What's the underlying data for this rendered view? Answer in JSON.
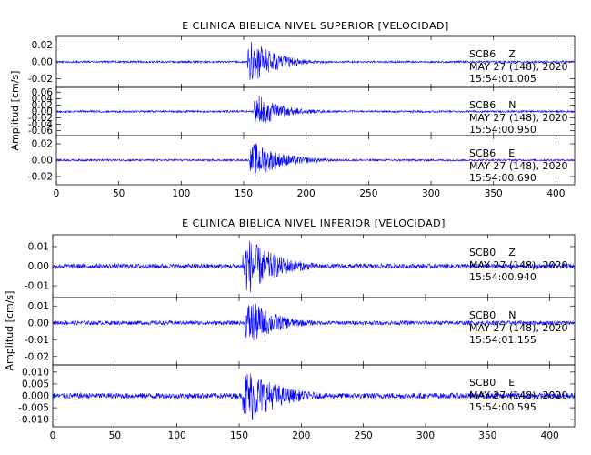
{
  "colors": {
    "trace": "#0000ff",
    "axis": "#000000",
    "background": "#ffffff"
  },
  "chart_data": [
    {
      "type": "line",
      "title": "E CLINICA BIBLICA NIVEL SUPERIOR [VELOCIDAD]",
      "ylabel": "Amplitud [cm/s]",
      "xlabel": "",
      "xlim": [
        0,
        415
      ],
      "xticks": [
        0,
        50,
        100,
        150,
        200,
        250,
        300,
        350,
        400
      ],
      "xtick_labels": [
        "0",
        "50",
        "100",
        "150",
        "200",
        "250",
        "300",
        "350",
        "400"
      ],
      "grid": false,
      "series": [
        {
          "station": "SCB6",
          "component": "Z",
          "date": "MAY 27 (148), 2020",
          "time": "15:54:01.005",
          "ylim": [
            -0.03,
            0.03
          ],
          "yticks": [
            0.02,
            0.0,
            -0.02
          ],
          "ytick_labels": [
            "0.02",
            "0.00",
            "-0.02"
          ],
          "noise_amplitude": 0.0012,
          "event_onset": 153,
          "event_peak": 0.028,
          "coda_end": 215
        },
        {
          "station": "SCB6",
          "component": "N",
          "date": "MAY 27 (148), 2020",
          "time": "15:54:00.950",
          "ylim": [
            -0.075,
            0.075
          ],
          "yticks": [
            0.06,
            0.04,
            0.02,
            0.0,
            -0.02,
            -0.04,
            -0.06
          ],
          "ytick_labels": [
            "0.06",
            "0.04",
            "0.02",
            "0.00",
            "-0.02",
            "-0.04",
            "-0.06"
          ],
          "noise_amplitude": 0.003,
          "event_onset": 158,
          "event_peak": 0.05,
          "coda_end": 225
        },
        {
          "station": "SCB6",
          "component": "E",
          "date": "MAY 27 (148), 2020",
          "time": "15:54:00.690",
          "ylim": [
            -0.03,
            0.03
          ],
          "yticks": [
            0.02,
            0.0,
            -0.02
          ],
          "ytick_labels": [
            "0.02",
            "0.00",
            "-0.02"
          ],
          "noise_amplitude": 0.0012,
          "event_onset": 155,
          "event_peak": 0.022,
          "coda_end": 230
        }
      ]
    },
    {
      "type": "line",
      "title": "E CLINICA BIBLICA NIVEL INFERIOR [VELOCIDAD]",
      "ylabel": "Amplitud [cm/s]",
      "xlabel": "",
      "xlim": [
        0,
        420
      ],
      "xticks": [
        0,
        50,
        100,
        150,
        200,
        250,
        300,
        350,
        400
      ],
      "xtick_labels": [
        "0",
        "50",
        "100",
        "150",
        "200",
        "250",
        "300",
        "350",
        "400"
      ],
      "grid": false,
      "series": [
        {
          "station": "SCB0",
          "component": "Z",
          "date": "MAY 27 (148), 2020",
          "time": "15:54:00.940",
          "ylim": [
            -0.016,
            0.016
          ],
          "yticks": [
            0.01,
            0.0,
            -0.01
          ],
          "ytick_labels": [
            "0.01",
            "0.00",
            "-0.01"
          ],
          "noise_amplitude": 0.0012,
          "event_onset": 153,
          "event_peak": 0.015,
          "coda_end": 230
        },
        {
          "station": "SCB0",
          "component": "N",
          "date": "MAY 27 (148), 2020",
          "time": "15:54:01.155",
          "ylim": [
            -0.025,
            0.015
          ],
          "yticks": [
            0.01,
            0.0,
            -0.01,
            -0.02
          ],
          "ytick_labels": [
            "0.01",
            "0.00",
            "-0.01",
            "-0.02"
          ],
          "noise_amplitude": 0.0012,
          "event_onset": 155,
          "event_peak": 0.014,
          "coda_end": 225
        },
        {
          "station": "SCB0",
          "component": "E",
          "date": "MAY 27 (148), 2020",
          "time": "15:54:00.595",
          "ylim": [
            -0.013,
            0.013
          ],
          "yticks": [
            0.01,
            0.005,
            0.0,
            -0.005,
            -0.01
          ],
          "ytick_labels": [
            "0.010",
            "0.005",
            "0.000",
            "-0.005",
            "-0.010"
          ],
          "noise_amplitude": 0.0012,
          "event_onset": 153,
          "event_peak": 0.012,
          "coda_end": 235
        }
      ]
    }
  ]
}
